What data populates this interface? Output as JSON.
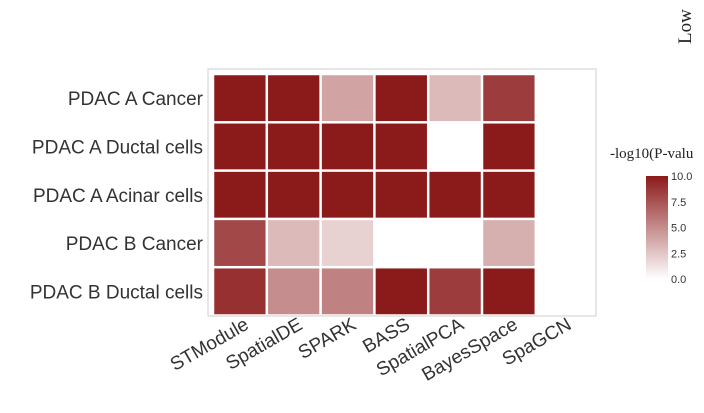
{
  "corner_label": "Low",
  "chart_data": {
    "type": "heatmap",
    "rows": [
      "PDAC A Cancer",
      "PDAC A Ductal cells",
      "PDAC A Acinar cells",
      "PDAC B Cancer",
      "PDAC B Ductal cells"
    ],
    "columns": [
      "STModule",
      "SpatialDE",
      "SPARK",
      "BASS",
      "SpatialPCA",
      "BayesSpace",
      "SpaGCN"
    ],
    "values": [
      [
        10,
        10,
        4,
        10,
        3,
        8.5,
        null
      ],
      [
        10,
        10,
        10,
        10,
        null,
        10,
        null
      ],
      [
        10,
        10,
        10,
        10,
        10,
        10,
        null
      ],
      [
        8,
        3,
        2,
        null,
        null,
        3.5,
        null
      ],
      [
        9,
        5,
        5.5,
        10,
        8.5,
        10,
        null
      ]
    ],
    "colorbar": {
      "title": "-log10(P-valu",
      "range": [
        0,
        10
      ],
      "ticks": [
        "10.0",
        "7.5",
        "5.0",
        "2.5",
        "0.0"
      ],
      "low_color": "#ffffff",
      "high_color": "#8b1a1a"
    }
  }
}
